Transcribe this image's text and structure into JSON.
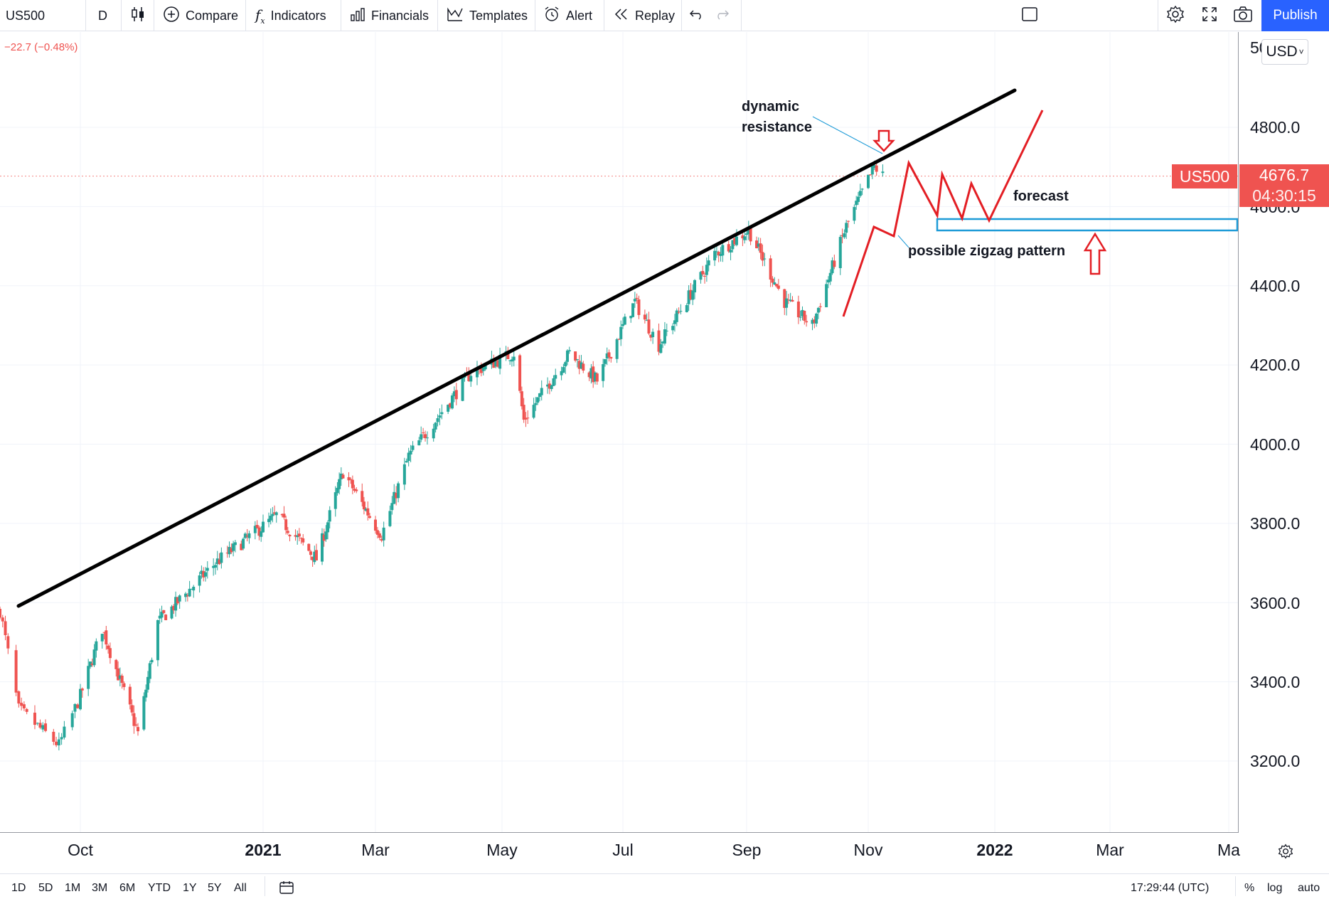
{
  "toolbar": {
    "symbol": "US500",
    "interval": "D",
    "compare": "Compare",
    "indicators": "Indicators",
    "financials": "Financials",
    "templates": "Templates",
    "alert": "Alert",
    "replay": "Replay",
    "publish": "Publish"
  },
  "legend": {
    "change": "−22.7 (−0.48%)"
  },
  "price_axis": {
    "currency": "USD",
    "top_partial": "50",
    "labels": [
      "4800.0",
      "4400.0",
      "4200.0",
      "4000.0",
      "3800.0",
      "3600.0",
      "3400.0",
      "3200.0"
    ],
    "symbol_badge": "US500",
    "last_price": "4676.7",
    "countdown": "04:30:15",
    "hidden_partial": "4600.0"
  },
  "time_axis": {
    "labels": [
      "Oct",
      "2021",
      "Mar",
      "May",
      "Jul",
      "Sep",
      "Nov",
      "2022",
      "Mar",
      "Ma"
    ]
  },
  "annotations": {
    "dynamic": "dynamic",
    "resistance": "resistance",
    "forecast": "forecast",
    "zigzag": "possible zigzag pattern"
  },
  "bottom": {
    "ranges": [
      "1D",
      "5D",
      "1M",
      "3M",
      "6M",
      "YTD",
      "1Y",
      "5Y",
      "All"
    ],
    "time": "17:29:44 (UTC)",
    "percent": "%",
    "log": "log",
    "auto": "auto"
  },
  "colors": {
    "up": "#26a69a",
    "down": "#ef5350",
    "accent": "#2962ff",
    "drawing_red": "#e31e24",
    "zone_blue": "#1e9bd7"
  },
  "chart_data": {
    "type": "candlestick",
    "symbol": "US500",
    "interval": "D",
    "ylim": [
      3030,
      5050
    ],
    "last_price": 4676.7,
    "change": -22.7,
    "change_pct": -0.48,
    "series": [
      {
        "date": "2020-09-01",
        "value": 3580
      },
      {
        "date": "2020-09-08",
        "value": 3330
      },
      {
        "date": "2020-09-23",
        "value": 3240
      },
      {
        "date": "2020-10-12",
        "value": 3535
      },
      {
        "date": "2020-10-30",
        "value": 3270
      },
      {
        "date": "2020-11-09",
        "value": 3550
      },
      {
        "date": "2020-12-08",
        "value": 3700
      },
      {
        "date": "2021-01-08",
        "value": 3820
      },
      {
        "date": "2021-01-29",
        "value": 3710
      },
      {
        "date": "2021-02-12",
        "value": 3930
      },
      {
        "date": "2021-03-04",
        "value": 3770
      },
      {
        "date": "2021-03-17",
        "value": 3970
      },
      {
        "date": "2021-04-16",
        "value": 4180
      },
      {
        "date": "2021-05-07",
        "value": 4230
      },
      {
        "date": "2021-05-12",
        "value": 4060
      },
      {
        "date": "2021-06-04",
        "value": 4230
      },
      {
        "date": "2021-06-18",
        "value": 4160
      },
      {
        "date": "2021-07-07",
        "value": 4360
      },
      {
        "date": "2021-07-19",
        "value": 4250
      },
      {
        "date": "2021-08-16",
        "value": 4480
      },
      {
        "date": "2021-09-02",
        "value": 4540
      },
      {
        "date": "2021-09-20",
        "value": 4360
      },
      {
        "date": "2021-10-04",
        "value": 4300
      },
      {
        "date": "2021-10-21",
        "value": 4550
      },
      {
        "date": "2021-11-04",
        "value": 4700
      },
      {
        "date": "2021-11-08",
        "value": 4677
      }
    ]
  }
}
